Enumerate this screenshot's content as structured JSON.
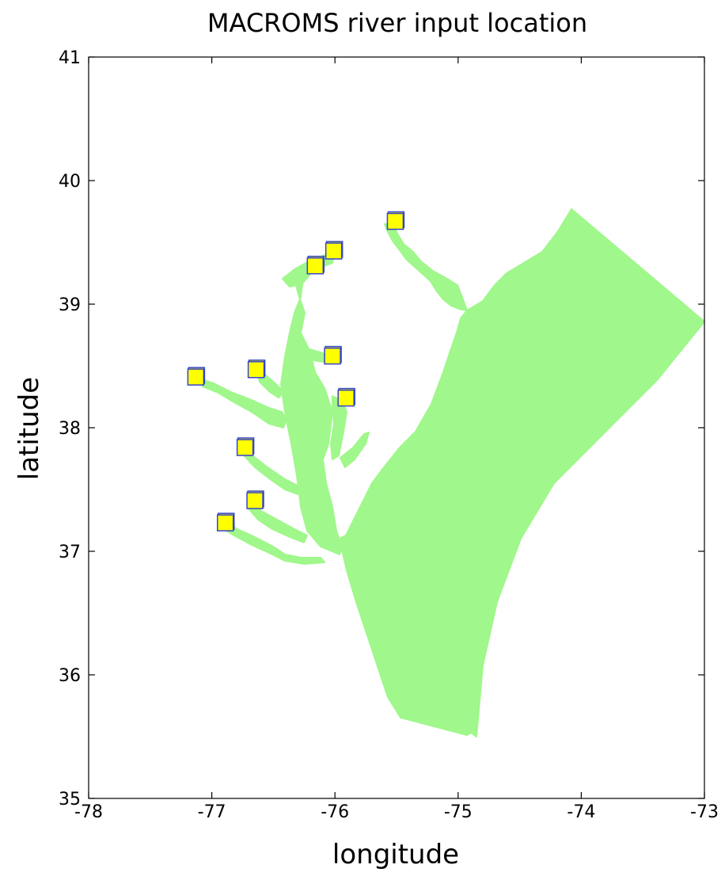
{
  "chart_data": {
    "type": "scatter",
    "title": "MACROMS river input location",
    "xlabel": "longitude",
    "ylabel": "latitude",
    "xlim": [
      -78,
      -73
    ],
    "ylim": [
      35,
      41
    ],
    "x_ticks": [
      -78,
      -77,
      -76,
      -75,
      -74,
      -73
    ],
    "y_ticks": [
      35,
      36,
      37,
      38,
      39,
      40,
      41
    ],
    "x_tick_labels": [
      "-78",
      "-77",
      "-76",
      "-75",
      "-74",
      "-73"
    ],
    "y_tick_labels": [
      "35",
      "36",
      "37",
      "38",
      "39",
      "40",
      "41"
    ],
    "grid": false,
    "legend": "none",
    "colors": {
      "model_domain": "#a0f78b",
      "marker_fill": "#ffff00",
      "marker_edge": "#3344cc",
      "axes": "#000000"
    },
    "points": [
      {
        "x": -75.51,
        "y": 39.67
      },
      {
        "x": -76.01,
        "y": 39.43
      },
      {
        "x": -76.16,
        "y": 39.31
      },
      {
        "x": -76.02,
        "y": 38.58
      },
      {
        "x": -76.64,
        "y": 38.47
      },
      {
        "x": -77.13,
        "y": 38.41
      },
      {
        "x": -75.91,
        "y": 38.24
      },
      {
        "x": -76.73,
        "y": 37.84
      },
      {
        "x": -76.65,
        "y": 37.41
      },
      {
        "x": -76.89,
        "y": 37.23
      }
    ]
  }
}
